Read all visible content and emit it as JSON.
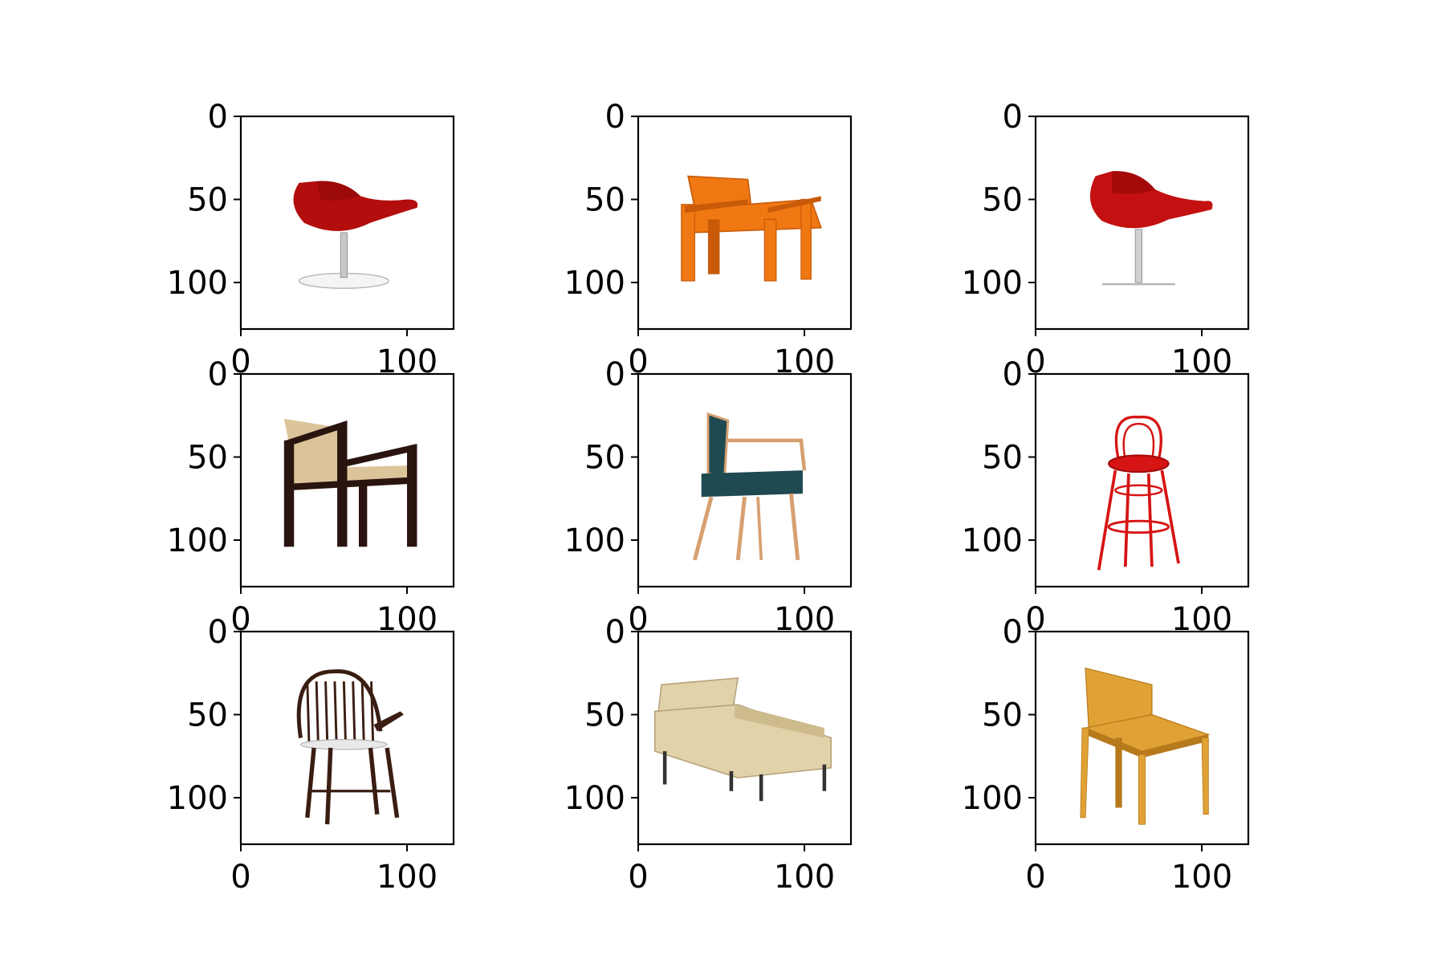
{
  "chart_data": {
    "type": "image-grid",
    "rows": 3,
    "cols": 3,
    "image_extent": [
      0,
      128
    ],
    "xticks": [
      0,
      100
    ],
    "yticks": [
      0,
      50,
      100
    ],
    "xtick_labels": [
      "0",
      "100"
    ],
    "ytick_labels": [
      "0",
      "50",
      "100"
    ],
    "panels": [
      {
        "subject": "red egg swivel chair on round base",
        "main_color": "#b30d0d",
        "accent_color": "#c8c8c8"
      },
      {
        "subject": "orange wooden slatted armchair",
        "main_color": "#f07812",
        "accent_color": "#c85a08"
      },
      {
        "subject": "red egg swivel chair on thin base",
        "main_color": "#c41010",
        "accent_color": "#d0d0d0"
      },
      {
        "subject": "dark wood armchair with beige cushions",
        "main_color": "#2a1410",
        "accent_color": "#dcc49a"
      },
      {
        "subject": "teal upholstered armchair with wooden frame",
        "main_color": "#1f4a52",
        "accent_color": "#d7a070"
      },
      {
        "subject": "red bentwood bar stool",
        "main_color": "#d61414",
        "accent_color": "#a00a0a"
      },
      {
        "subject": "dark brown windsor spindle armchair",
        "main_color": "#3a1d12",
        "accent_color": "#e8e8e8"
      },
      {
        "subject": "beige tufted lounge sofa chair",
        "main_color": "#e2d2aa",
        "accent_color": "#333333"
      },
      {
        "subject": "golden yellow wooden chair",
        "main_color": "#e0a235",
        "accent_color": "#b67a1c"
      }
    ]
  }
}
